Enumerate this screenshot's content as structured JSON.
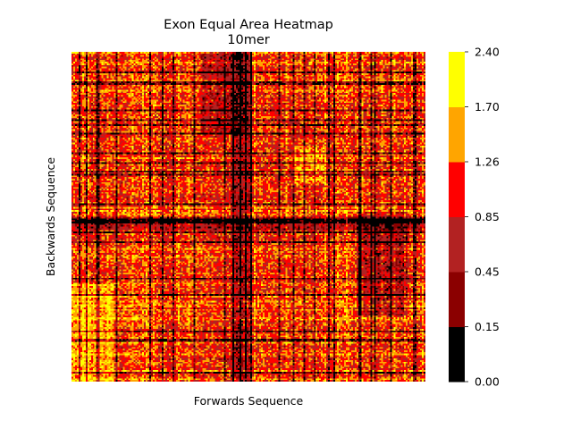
{
  "chart_data": {
    "type": "heatmap",
    "title": "Exon Equal Area Heatmap",
    "subtitle": "10mer",
    "xlabel": "Forwards Sequence",
    "ylabel": "Backwards Sequence",
    "x_ticks_shown": false,
    "y_ticks_shown": false,
    "color_scale": {
      "type": "discrete",
      "boundaries": [
        "0.00",
        "0.15",
        "0.45",
        "0.85",
        "1.26",
        "1.70",
        "2.40"
      ],
      "bin_colors": [
        "#000000",
        "#8b0000",
        "#b22222",
        "#ff0000",
        "#ffa500",
        "#ffff00"
      ]
    },
    "colorbar_position": "right",
    "matrix_size_estimate": 200,
    "value_range": [
      0.0,
      2.4
    ]
  }
}
